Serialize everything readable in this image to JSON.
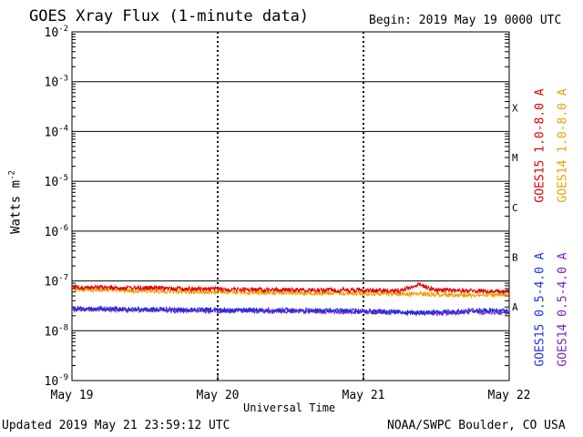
{
  "header": {
    "title": "GOES Xray Flux (1-minute data)",
    "begin": "Begin:  2019 May 19 0000 UTC"
  },
  "axes": {
    "ylabel": "Watts m",
    "ylabel_sup": "-2",
    "xlabel": "Universal Time"
  },
  "footer": {
    "updated": "Updated 2019 May 21 23:59:12 UTC",
    "credit": "NOAA/SWPC Boulder, CO USA"
  },
  "legend": [
    {
      "label": "GOES15 1.0-8.0 A",
      "color": "#e00000"
    },
    {
      "label": "GOES14 1.0-8.0 A",
      "color": "#f0a000"
    },
    {
      "label": "GOES15 0.5-4.0 A",
      "color": "#2030e0"
    },
    {
      "label": "GOES14 0.5-4.0 A",
      "color": "#8020c0"
    }
  ],
  "chart_data": {
    "type": "line",
    "title": "GOES Xray Flux (1-minute data)",
    "xlabel": "Universal Time",
    "ylabel": "Watts m-2",
    "yscale": "log",
    "ylim": [
      1e-09,
      0.01
    ],
    "xlim": [
      "2019-05-19 00:00",
      "2019-05-22 00:00"
    ],
    "x_ticks": [
      "May 19",
      "May 20",
      "May 21",
      "May 22"
    ],
    "y_ticks": [
      {
        "base": "10",
        "exp": "-2",
        "value": 0.01
      },
      {
        "base": "10",
        "exp": "-3",
        "value": 0.001
      },
      {
        "base": "10",
        "exp": "-4",
        "value": 0.0001
      },
      {
        "base": "10",
        "exp": "-5",
        "value": 1e-05
      },
      {
        "base": "10",
        "exp": "-6",
        "value": 1e-06
      },
      {
        "base": "10",
        "exp": "-7",
        "value": 1e-07
      },
      {
        "base": "10",
        "exp": "-8",
        "value": 1e-08
      },
      {
        "base": "10",
        "exp": "-9",
        "value": 1e-09
      }
    ],
    "flare_classes": [
      {
        "label": "X",
        "value": 0.0003
      },
      {
        "label": "M",
        "value": 3e-05
      },
      {
        "label": "C",
        "value": 3e-06
      },
      {
        "label": "B",
        "value": 3e-07
      },
      {
        "label": "A",
        "value": 3e-08
      }
    ],
    "grid": true,
    "series": [
      {
        "name": "GOES15 1.0-8.0 A",
        "color": "#e00000",
        "x": [
          "2019-05-19 00:00",
          "2019-05-19 12:00",
          "2019-05-20 00:00",
          "2019-05-20 12:00",
          "2019-05-21 00:00",
          "2019-05-21 06:00",
          "2019-05-21 09:00",
          "2019-05-21 12:00",
          "2019-05-21 18:00",
          "2019-05-22 00:00"
        ],
        "y": [
          7.5e-08,
          7.2e-08,
          6.8e-08,
          6.6e-08,
          6.5e-08,
          6.3e-08,
          8.5e-08,
          6.6e-08,
          6.3e-08,
          6e-08
        ]
      },
      {
        "name": "GOES14 1.0-8.0 A",
        "color": "#f0a000",
        "x": [
          "2019-05-19 00:00",
          "2019-05-19 12:00",
          "2019-05-20 00:00",
          "2019-05-20 12:00",
          "2019-05-21 00:00",
          "2019-05-21 06:00",
          "2019-05-21 12:00",
          "2019-05-21 18:00",
          "2019-05-22 00:00"
        ],
        "y": [
          6.8e-08,
          6.3e-08,
          6e-08,
          5.8e-08,
          5.6e-08,
          5.5e-08,
          5.4e-08,
          5.2e-08,
          5.2e-08
        ]
      },
      {
        "name": "GOES15 0.5-4.0 A",
        "color": "#2030e0",
        "x": [
          "2019-05-19 00:00",
          "2019-05-19 12:00",
          "2019-05-20 00:00",
          "2019-05-20 12:00",
          "2019-05-21 00:00",
          "2019-05-21 09:00",
          "2019-05-21 15:00",
          "2019-05-21 18:00",
          "2019-05-22 00:00"
        ],
        "y": [
          2.8e-08,
          2.7e-08,
          2.6e-08,
          2.6e-08,
          2.5e-08,
          2.3e-08,
          2.4e-08,
          2.6e-08,
          2.5e-08
        ]
      },
      {
        "name": "GOES14 0.5-4.0 A",
        "color": "#8020c0",
        "x": [
          "2019-05-19 00:00",
          "2019-05-20 00:00",
          "2019-05-21 00:00",
          "2019-05-21 12:00",
          "2019-05-21 18:00",
          "2019-05-22 00:00"
        ],
        "y": [
          2.7e-08,
          2.5e-08,
          2.4e-08,
          2.2e-08,
          2.4e-08,
          2.3e-08
        ]
      }
    ]
  }
}
